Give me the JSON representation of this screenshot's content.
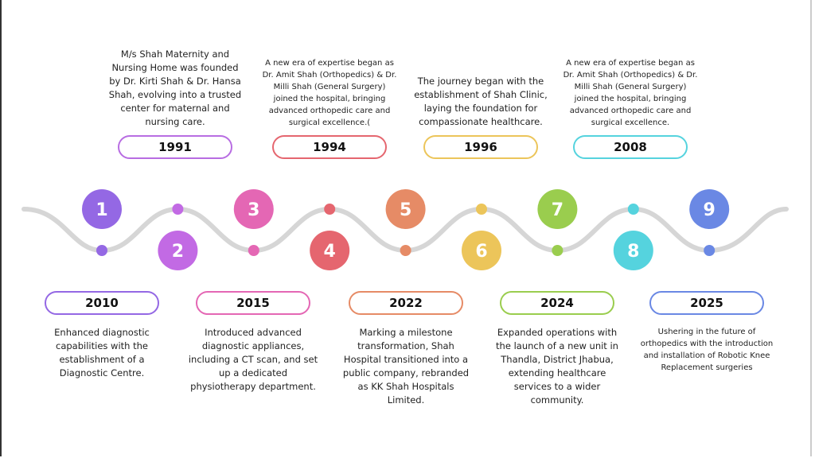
{
  "milestones": [
    {
      "number": "1",
      "color": "#9468e4"
    },
    {
      "number": "2",
      "color": "#c26ae4"
    },
    {
      "number": "3",
      "color": "#e467b4"
    },
    {
      "number": "4",
      "color": "#e5666f"
    },
    {
      "number": "5",
      "color": "#e68b66"
    },
    {
      "number": "6",
      "color": "#ecc55a"
    },
    {
      "number": "7",
      "color": "#9acd4e"
    },
    {
      "number": "8",
      "color": "#55d3de"
    },
    {
      "number": "9",
      "color": "#6a88e4"
    }
  ],
  "top_events": [
    {
      "year": "1991",
      "color": "#b86de2",
      "text": "M/s Shah Maternity and Nursing Home was founded by Dr. Kirti Shah & Dr. Hansa Shah, evolving into a trusted center for maternal and nursing care.",
      "size": "big"
    },
    {
      "year": "1994",
      "color": "#e5666f",
      "text": "A new era of expertise began as Dr. Amit Shah (Orthopedics) & Dr. Milli Shah (General Surgery) joined the hospital, bringing advanced orthopedic care and surgical excellence.(",
      "size": "small"
    },
    {
      "year": "1996",
      "color": "#ecc55a",
      "text": "The journey began with the establishment of Shah Clinic, laying the foundation for compassionate healthcare.",
      "size": "big"
    },
    {
      "year": "2008",
      "color": "#55d3de",
      "text": "A new era of expertise began as Dr. Amit Shah (Orthopedics) & Dr. Milli Shah (General Surgery) joined the hospital, bringing advanced orthopedic care and surgical excellence.",
      "size": "small"
    }
  ],
  "bottom_events": [
    {
      "year": "2010",
      "color": "#9468e4",
      "text": "Enhanced diagnostic capabilities with the establishment of a Diagnostic Centre.",
      "size": "big"
    },
    {
      "year": "2015",
      "color": "#e467b4",
      "text": "Introduced advanced diagnostic appliances, including a CT scan, and set up a dedicated physiotherapy department.",
      "size": "big"
    },
    {
      "year": "2022",
      "color": "#e68b66",
      "text": "Marking a milestone transformation, Shah Hospital transitioned into a public company, rebranded as KK Shah Hospitals Limited.",
      "size": "big"
    },
    {
      "year": "2024",
      "color": "#9acd4e",
      "text": "Expanded operations with the launch of a new unit in Thandla, District Jhabua, extending healthcare services to a wider community.",
      "size": "big"
    },
    {
      "year": "2025",
      "color": "#6a88e4",
      "text": "Ushering in the future of orthopedics with the introduction and installation of Robotic Knee Replacement surgeries",
      "size": "small"
    }
  ]
}
